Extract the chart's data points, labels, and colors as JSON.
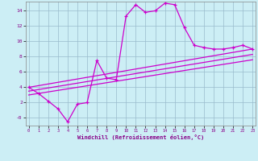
{
  "bg_color": "#cceef5",
  "grid_color": "#99bbcc",
  "line_color": "#cc00cc",
  "xlabel": "Windchill (Refroidissement éolien,°C)",
  "main_x": [
    0,
    1,
    2,
    3,
    4,
    5,
    6,
    7,
    8,
    9,
    10,
    11,
    12,
    13,
    14,
    15,
    16,
    17,
    18,
    19,
    20,
    21,
    22,
    23
  ],
  "main_y": [
    4.0,
    3.2,
    2.2,
    1.2,
    -0.5,
    1.8,
    2.0,
    7.5,
    5.2,
    5.0,
    13.3,
    14.8,
    13.8,
    14.0,
    15.0,
    14.8,
    11.8,
    9.5,
    9.2,
    9.0,
    9.0,
    9.2,
    9.5,
    9.0
  ],
  "trend1_x": [
    0,
    23
  ],
  "trend1_y": [
    4.0,
    9.0
  ],
  "trend2_x": [
    0,
    23
  ],
  "trend2_y": [
    3.5,
    8.3
  ],
  "trend3_x": [
    0,
    23
  ],
  "trend3_y": [
    3.0,
    7.6
  ],
  "xlim": [
    -0.3,
    23.3
  ],
  "ylim": [
    -1.0,
    15.2
  ],
  "yticks": [
    0,
    2,
    4,
    6,
    8,
    10,
    12,
    14
  ],
  "ytick_labels": [
    "-0",
    "2",
    "4",
    "6",
    "8",
    "10",
    "12",
    "14"
  ],
  "xticks": [
    0,
    1,
    2,
    3,
    4,
    5,
    6,
    7,
    8,
    9,
    10,
    11,
    12,
    13,
    14,
    15,
    16,
    17,
    18,
    19,
    20,
    21,
    22,
    23
  ]
}
